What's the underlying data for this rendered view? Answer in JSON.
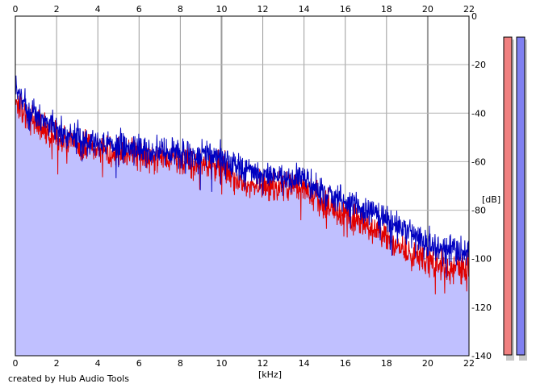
{
  "chart_data": {
    "type": "area",
    "title": "",
    "xlabel": "[kHz]",
    "ylabel": "[dB]",
    "credit": "created by Hub Audio Tools",
    "xlim": [
      0,
      22
    ],
    "ylim": [
      -140,
      0
    ],
    "x_ticks": [
      0,
      2,
      4,
      6,
      8,
      10,
      12,
      14,
      16,
      18,
      20,
      22
    ],
    "y_ticks": [
      0,
      -20,
      -40,
      -60,
      -80,
      -100,
      -120,
      -140
    ],
    "y_tick_labels": [
      "0",
      "-20",
      "-40",
      "-60",
      "-80",
      "-100",
      "-120",
      "-140"
    ],
    "grid": true,
    "series": [
      {
        "color": "#0000c0",
        "x": [
          0,
          0.5,
          1,
          1.5,
          2,
          2.5,
          3,
          3.5,
          4,
          4.5,
          5,
          5.5,
          6,
          6.5,
          7,
          7.5,
          8,
          8.5,
          9,
          9.5,
          10,
          10.5,
          11,
          11.5,
          12,
          12.5,
          13,
          13.5,
          14,
          14.5,
          15,
          15.5,
          16,
          16.5,
          17,
          17.5,
          18,
          18.5,
          19,
          19.5,
          20,
          20.5,
          21,
          21.5,
          22
        ],
        "values": [
          -30,
          -37,
          -41,
          -43,
          -46,
          -48,
          -50,
          -51,
          -52,
          -53,
          -53,
          -54,
          -54,
          -55,
          -55,
          -56,
          -56,
          -57,
          -57,
          -57,
          -58,
          -61,
          -63,
          -65,
          -66,
          -66,
          -67,
          -67,
          -67,
          -70,
          -73,
          -75,
          -77,
          -78,
          -80,
          -82,
          -84,
          -86,
          -89,
          -91,
          -94,
          -95,
          -96,
          -97,
          -97
        ]
      },
      {
        "color": "#e00000",
        "x": [
          0,
          0.5,
          1,
          1.5,
          2,
          2.5,
          3,
          3.5,
          4,
          4.5,
          5,
          5.5,
          6,
          6.5,
          7,
          7.5,
          8,
          8.5,
          9,
          9.5,
          10,
          10.5,
          11,
          11.5,
          12,
          12.5,
          13,
          13.5,
          14,
          14.5,
          15,
          15.5,
          16,
          16.5,
          17,
          17.5,
          18,
          18.5,
          19,
          19.5,
          20,
          20.5,
          21,
          21.5,
          22
        ],
        "values": [
          -34,
          -40,
          -44,
          -47,
          -50,
          -52,
          -53,
          -54,
          -55,
          -56,
          -56,
          -57,
          -57,
          -58,
          -58,
          -59,
          -59,
          -60,
          -60,
          -61,
          -62,
          -66,
          -68,
          -69,
          -70,
          -70,
          -70,
          -70,
          -71,
          -74,
          -77,
          -80,
          -82,
          -84,
          -86,
          -89,
          -92,
          -95,
          -97,
          -99,
          -101,
          -102,
          -103,
          -104,
          -104
        ]
      }
    ],
    "fill_color": "#c0c0ff",
    "meters": [
      {
        "color": "#f08080"
      },
      {
        "color": "#8080f0"
      }
    ]
  }
}
